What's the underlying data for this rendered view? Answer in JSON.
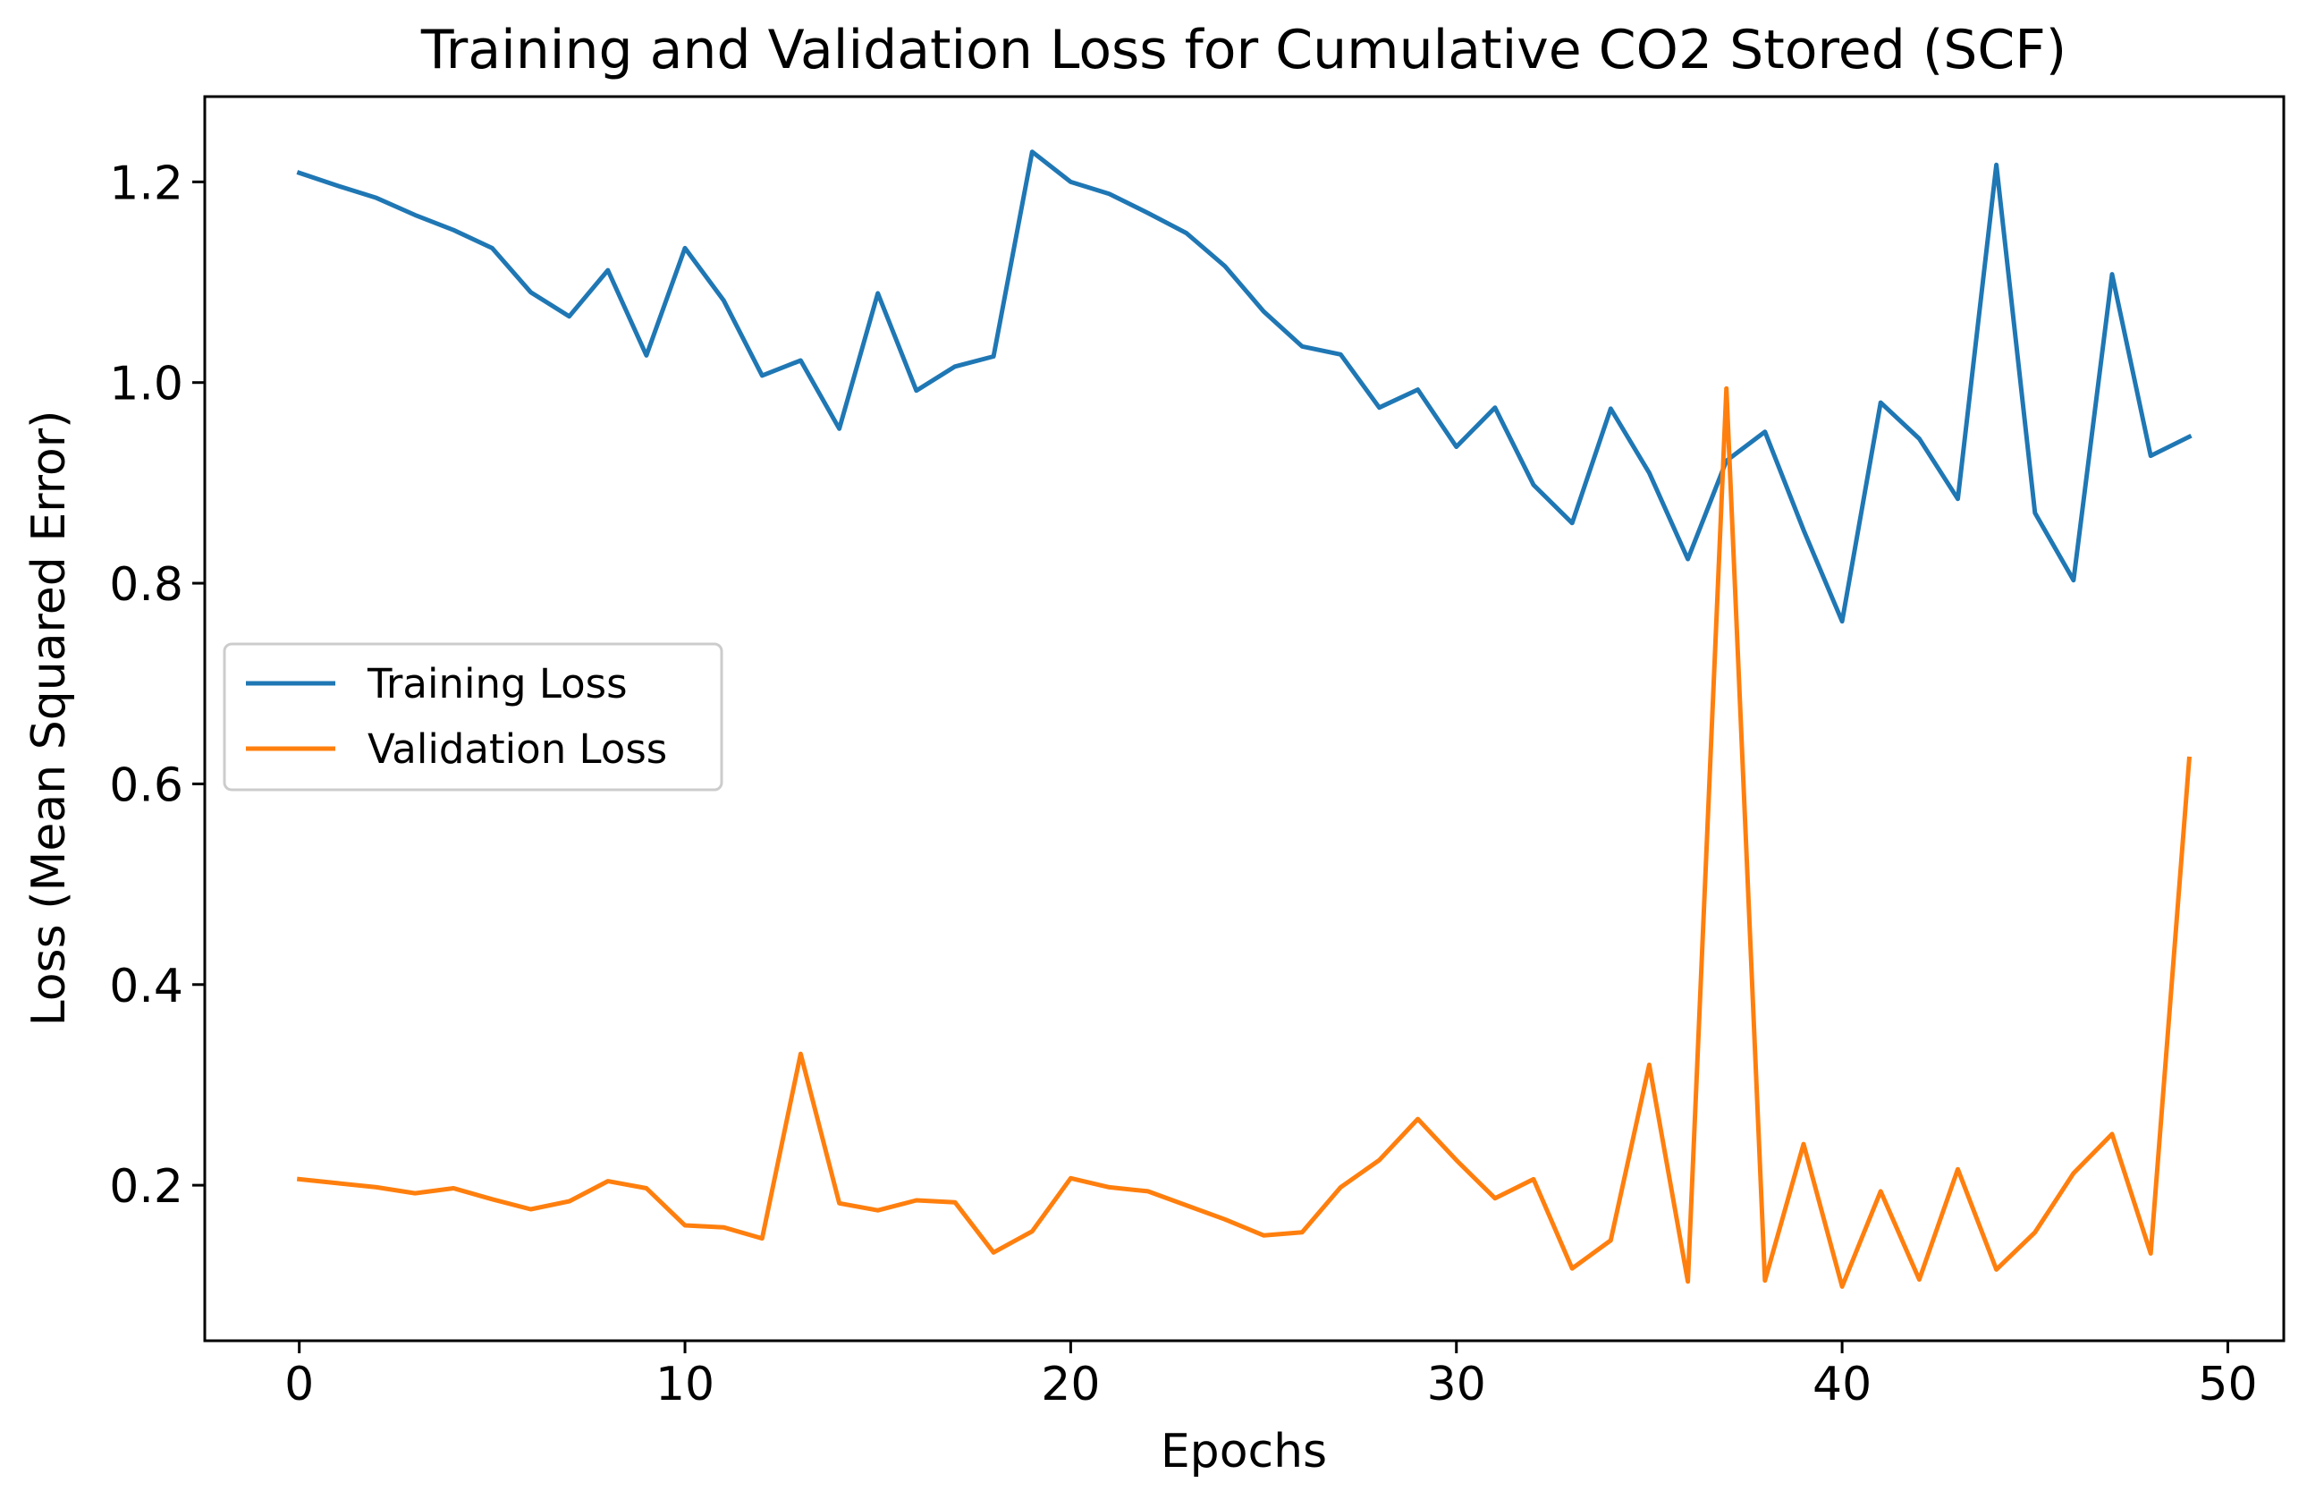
{
  "chart_data": {
    "type": "line",
    "title": "Training and Validation Loss for Cumulative CO2 Stored (SCF)",
    "xlabel": "Epochs",
    "ylabel": "Loss (Mean Squared Error)",
    "xlim": [
      -2.45,
      51.45
    ],
    "ylim": [
      0.045,
      1.285
    ],
    "xticks": [
      0,
      10,
      20,
      30,
      40,
      50
    ],
    "xtick_labels": [
      "0",
      "10",
      "20",
      "30",
      "40",
      "50"
    ],
    "yticks": [
      0.2,
      0.4,
      0.6,
      0.8,
      1.0,
      1.2
    ],
    "ytick_labels": [
      "0.2",
      "0.4",
      "0.6",
      "0.8",
      "1.0",
      "1.2"
    ],
    "grid": false,
    "legend_position": "center-left",
    "x": [
      0,
      1,
      2,
      3,
      4,
      5,
      6,
      7,
      8,
      9,
      10,
      11,
      12,
      13,
      14,
      15,
      16,
      17,
      18,
      19,
      20,
      21,
      22,
      23,
      24,
      25,
      26,
      27,
      28,
      29,
      30,
      31,
      32,
      33,
      34,
      35,
      36,
      37,
      38,
      39,
      40,
      41,
      42,
      43,
      44,
      45,
      46,
      47,
      48,
      49
    ],
    "series": [
      {
        "name": "Training Loss",
        "color": "#1f77b4",
        "values": [
          1.209,
          1.196,
          1.184,
          1.167,
          1.152,
          1.134,
          1.09,
          1.066,
          1.112,
          1.027,
          1.134,
          1.082,
          1.007,
          1.022,
          0.954,
          1.089,
          0.992,
          1.016,
          1.026,
          1.23,
          1.2,
          1.188,
          1.169,
          1.149,
          1.116,
          1.071,
          1.036,
          1.028,
          0.975,
          0.993,
          0.936,
          0.975,
          0.898,
          0.86,
          0.974,
          0.91,
          0.824,
          0.922,
          0.951,
          0.853,
          0.762,
          0.98,
          0.944,
          0.884,
          1.217,
          0.87,
          0.803,
          1.108,
          0.927,
          0.946
        ]
      },
      {
        "name": "Validation Loss",
        "color": "#ff7f0e",
        "values": [
          0.206,
          0.202,
          0.198,
          0.192,
          0.197,
          0.186,
          0.176,
          0.184,
          0.204,
          0.197,
          0.16,
          0.158,
          0.147,
          0.331,
          0.182,
          0.175,
          0.185,
          0.183,
          0.133,
          0.154,
          0.207,
          0.198,
          0.194,
          0.18,
          0.166,
          0.15,
          0.153,
          0.198,
          0.225,
          0.266,
          0.225,
          0.187,
          0.206,
          0.117,
          0.145,
          0.32,
          0.104,
          0.994,
          0.105,
          0.241,
          0.099,
          0.194,
          0.106,
          0.216,
          0.116,
          0.153,
          0.212,
          0.251,
          0.132,
          0.625
        ]
      }
    ]
  }
}
